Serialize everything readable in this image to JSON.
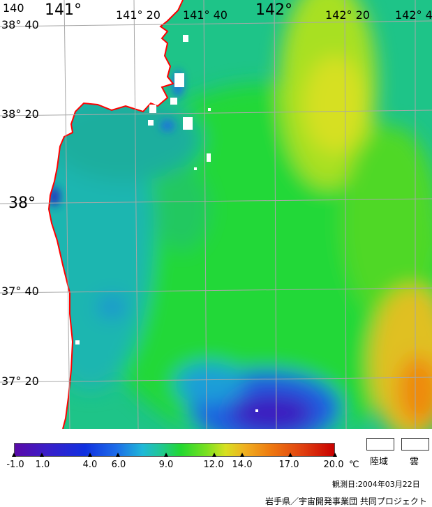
{
  "map": {
    "longitude_labels": [
      {
        "text": "140",
        "size": "sm"
      },
      {
        "text": "141°",
        "size": "lg"
      },
      {
        "text": "141° 20",
        "size": "sm"
      },
      {
        "text": "141° 40",
        "size": "sm"
      },
      {
        "text": "142°",
        "size": "lg"
      },
      {
        "text": "142° 20",
        "size": "sm"
      },
      {
        "text": "142° 4",
        "size": "sm"
      }
    ],
    "latitude_labels": [
      {
        "text": "38° 40",
        "size": "sm"
      },
      {
        "text": "38° 20",
        "size": "sm"
      },
      {
        "text": "38°",
        "size": "lg"
      },
      {
        "text": "37° 40",
        "size": "sm"
      },
      {
        "text": "37° 20",
        "size": "sm"
      }
    ],
    "colors": {
      "land": "#ffffff",
      "coastline": "#ff0000",
      "grid": "#a8a8a8"
    }
  },
  "colorbar": {
    "ticks": [
      "-1.0",
      "1.0",
      "4.0",
      "6.0",
      "9.0",
      "12.0",
      "14.0",
      "17.0",
      "20.0"
    ],
    "unit": "℃"
  },
  "legend": {
    "land_label": "陸域",
    "cloud_label": "雲"
  },
  "observation_date": "観測日:2004年03月22日",
  "credit": "岩手県／宇宙開発事業団 共同プロジェクト"
}
